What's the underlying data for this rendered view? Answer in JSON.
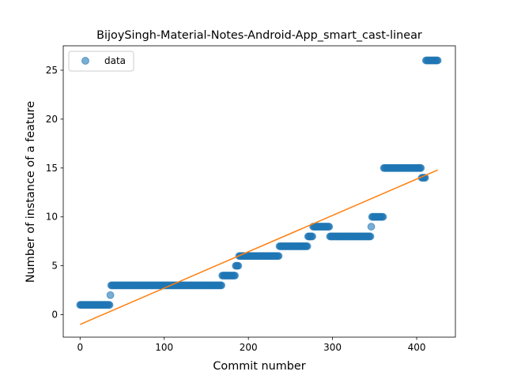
{
  "chart_data": {
    "type": "scatter",
    "title": "BijoySingh-Material-Notes-Android-App_smart_cast-linear",
    "xlabel": "Commit number",
    "ylabel": "Number of instance of a feature",
    "xlim": [
      -20,
      446
    ],
    "ylim": [
      -2.3,
      27.5
    ],
    "xticks": [
      0,
      100,
      200,
      300,
      400
    ],
    "yticks": [
      0,
      5,
      10,
      15,
      20,
      25
    ],
    "grid": false,
    "legend_position": "upper-left",
    "point_color": "#1f77b4",
    "line_color": "#ff7f0e",
    "series": [
      {
        "name": "data",
        "kind": "points",
        "segments": [
          {
            "x_start": 0,
            "x_end": 35,
            "y": 1
          },
          {
            "x_start": 36,
            "x_end": 36,
            "y": 2
          },
          {
            "x_start": 37,
            "x_end": 168,
            "y": 3
          },
          {
            "x_start": 169,
            "x_end": 184,
            "y": 4
          },
          {
            "x_start": 185,
            "x_end": 188,
            "y": 5
          },
          {
            "x_start": 189,
            "x_end": 236,
            "y": 6
          },
          {
            "x_start": 237,
            "x_end": 270,
            "y": 7
          },
          {
            "x_start": 271,
            "x_end": 276,
            "y": 8
          },
          {
            "x_start": 277,
            "x_end": 296,
            "y": 9
          },
          {
            "x_start": 297,
            "x_end": 345,
            "y": 8
          },
          {
            "x_start": 346,
            "x_end": 346,
            "y": 9
          },
          {
            "x_start": 347,
            "x_end": 360,
            "y": 10
          },
          {
            "x_start": 361,
            "x_end": 405,
            "y": 15
          },
          {
            "x_start": 406,
            "x_end": 410,
            "y": 14
          },
          {
            "x_start": 411,
            "x_end": 425,
            "y": 26
          }
        ]
      },
      {
        "kind": "line",
        "x": [
          0,
          425
        ],
        "y": [
          -1.0,
          14.8
        ]
      }
    ],
    "legend": [
      {
        "label": "data",
        "marker": "circle"
      }
    ]
  }
}
